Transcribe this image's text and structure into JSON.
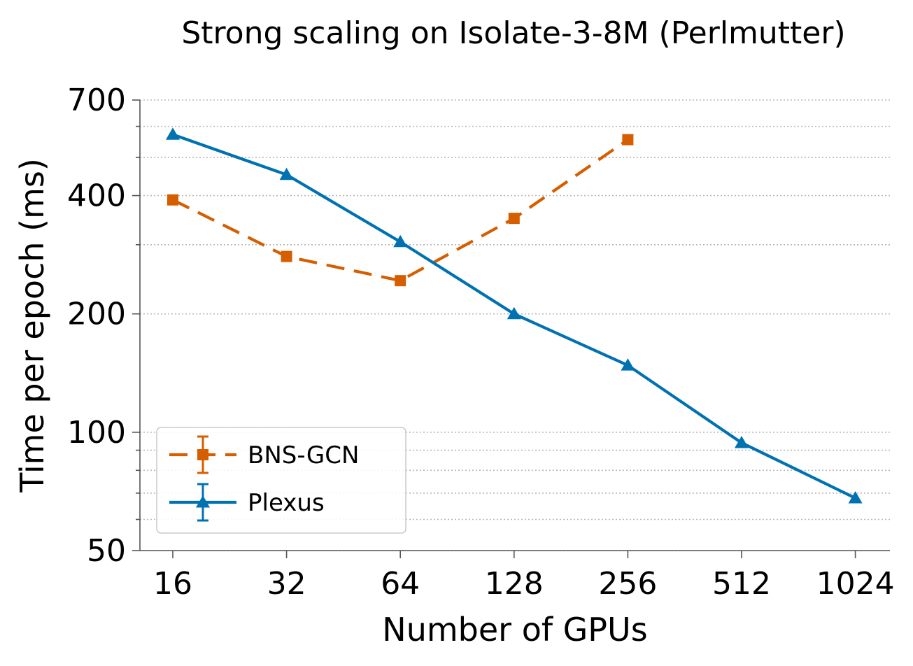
{
  "chart_data": {
    "type": "line",
    "title": "Strong scaling on Isolate-3-8M (Perlmutter)",
    "xlabel": "Number of GPUs",
    "ylabel": "Time per epoch (ms)",
    "x_scale": "log2",
    "y_scale": "log",
    "x": [
      16,
      32,
      64,
      128,
      256,
      512,
      1024
    ],
    "x_tick_labels": [
      "16",
      "32",
      "64",
      "128",
      "256",
      "512",
      "1024"
    ],
    "y_ticks": [
      50,
      100,
      200,
      400,
      700
    ],
    "y_tick_labels": [
      "50",
      "100",
      "200",
      "400",
      "700"
    ],
    "ylim": [
      50,
      700
    ],
    "grid": "y-major-and-minor",
    "legend_position": "lower-left",
    "series": [
      {
        "name": "BNS-GCN",
        "x": [
          16,
          32,
          64,
          128,
          256
        ],
        "values": [
          390,
          280,
          243,
          350,
          555
        ],
        "color": "#D55E00",
        "marker": "square",
        "linestyle": "dashed"
      },
      {
        "name": "Plexus",
        "x": [
          16,
          32,
          64,
          128,
          256,
          512,
          1024
        ],
        "values": [
          572,
          452,
          305,
          200,
          148,
          94,
          68
        ],
        "color": "#0072B2",
        "marker": "triangle",
        "linestyle": "solid"
      }
    ]
  }
}
